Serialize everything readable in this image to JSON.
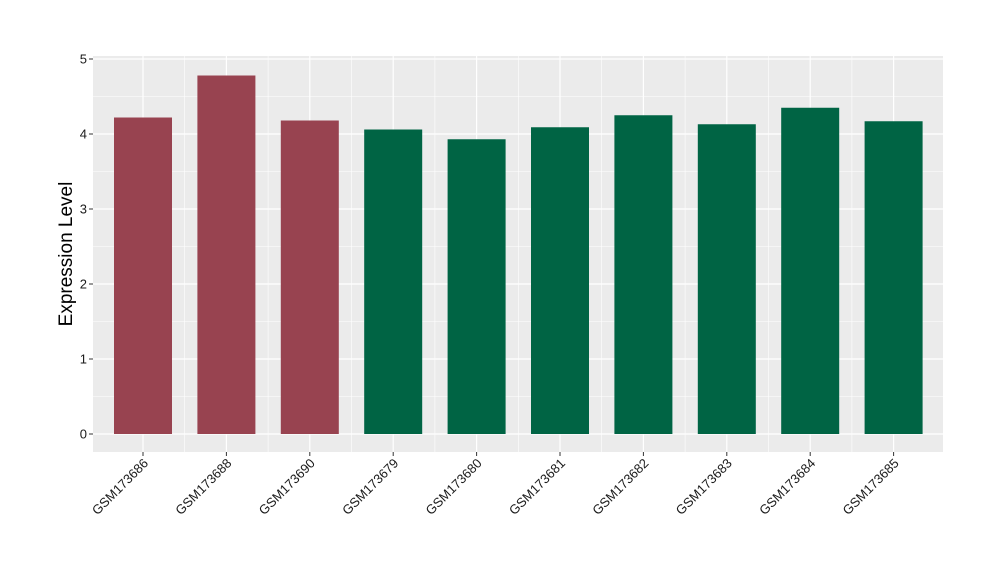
{
  "chart_data": {
    "type": "bar",
    "title": "",
    "xlabel": "",
    "ylabel": "Expression Level",
    "ylim": [
      -0.22,
      5.02
    ],
    "yticks": [
      0,
      1,
      2,
      3,
      4,
      5
    ],
    "grid": true,
    "categories": [
      "GSM173686",
      "GSM173688",
      "GSM173690",
      "GSM173679",
      "GSM173680",
      "GSM173681",
      "GSM173682",
      "GSM173683",
      "GSM173684",
      "GSM173685"
    ],
    "values": [
      4.22,
      4.78,
      4.18,
      4.06,
      3.93,
      4.09,
      4.25,
      4.13,
      4.35,
      4.17
    ],
    "bar_colors": [
      "#984350",
      "#984350",
      "#984350",
      "#006444",
      "#006444",
      "#006444",
      "#006444",
      "#006444",
      "#006444",
      "#006444"
    ],
    "panel_background": "#ebebeb",
    "grid_color": "#ffffff"
  }
}
